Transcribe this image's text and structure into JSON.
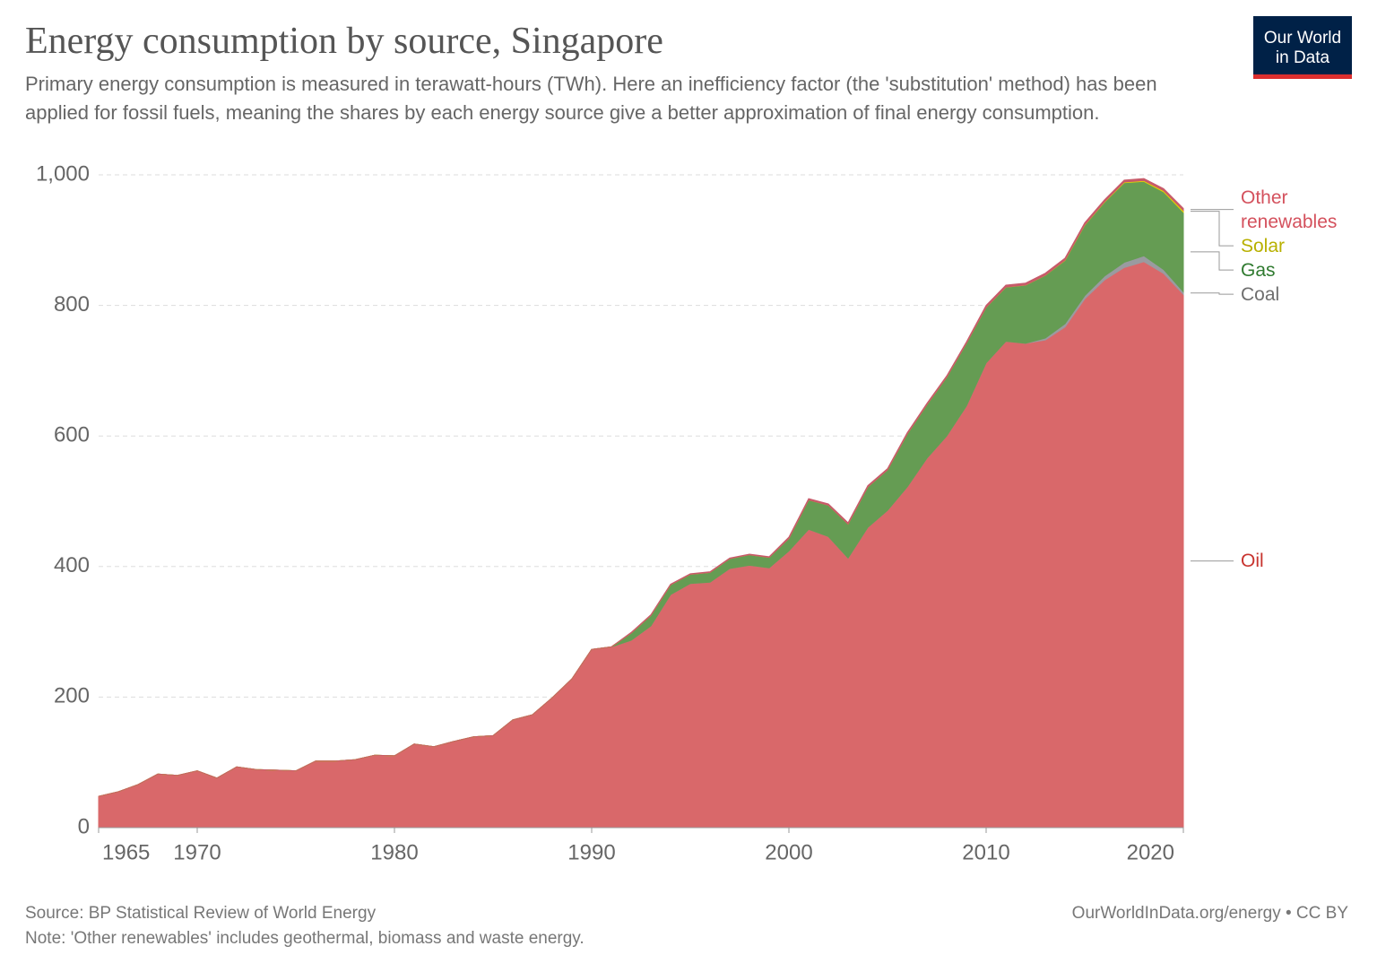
{
  "chart_data": {
    "type": "stacked_area",
    "title": "Energy consumption by source, Singapore",
    "subtitle": "Primary energy consumption is measured in terawatt-hours (TWh). Here an inefficiency factor (the 'substitution' method) has been applied for fossil fuels, meaning the shares by each energy source give a better approximation of final energy consumption.",
    "logo": "Our World in Data",
    "source": "Source: BP Statistical Review of World Energy",
    "note": "Note: 'Other renewables' includes geothermal, biomass and waste energy.",
    "url": "OurWorldInData.org/energy • CC BY",
    "x": [
      1965,
      1966,
      1967,
      1968,
      1969,
      1970,
      1971,
      1972,
      1973,
      1974,
      1975,
      1976,
      1977,
      1978,
      1979,
      1980,
      1981,
      1982,
      1983,
      1984,
      1985,
      1986,
      1987,
      1988,
      1989,
      1990,
      1991,
      1992,
      1993,
      1994,
      1995,
      1996,
      1997,
      1998,
      1999,
      2000,
      2001,
      2002,
      2003,
      2004,
      2005,
      2006,
      2007,
      2008,
      2009,
      2010,
      2011,
      2012,
      2013,
      2014,
      2015,
      2016,
      2017,
      2018,
      2019,
      2020
    ],
    "xlim": [
      1965,
      2020
    ],
    "xticks": [
      1965,
      1970,
      1980,
      1990,
      2000,
      2010,
      2020
    ],
    "ylim": [
      0,
      1000
    ],
    "yticks": [
      0,
      200,
      400,
      600,
      800,
      {
        "value": 1000,
        "label": "1,000"
      }
    ],
    "grid": true,
    "series": [
      {
        "name": "Oil",
        "color": "#d9686a",
        "label_color": "#c8342f",
        "values": [
          48,
          55,
          66,
          82,
          80,
          87,
          76,
          93,
          89,
          88,
          87,
          102,
          102,
          104,
          111,
          110,
          128,
          124,
          132,
          139,
          141,
          165,
          173,
          199,
          228,
          273,
          277,
          287,
          309,
          357,
          374,
          376,
          397,
          402,
          398,
          424,
          457,
          446,
          413,
          460,
          486,
          522,
          566,
          600,
          646,
          712,
          745,
          742,
          747,
          767,
          810,
          839,
          858,
          867,
          849,
          817
        ]
      },
      {
        "name": "Coal",
        "color": "#9a9ba0",
        "label_color": "#6e6e6e",
        "values": [
          0,
          0,
          0,
          0,
          0,
          0,
          0,
          0,
          0,
          0,
          0,
          0,
          0,
          0,
          0,
          0,
          0,
          0,
          0,
          0,
          0,
          0,
          0,
          0,
          0,
          0,
          0,
          0,
          0,
          0,
          0,
          0,
          0,
          0,
          0,
          0,
          0,
          0,
          0,
          0,
          0,
          0,
          0,
          0,
          0,
          0,
          0,
          0,
          3,
          5,
          5,
          6,
          8,
          9,
          6,
          4
        ]
      },
      {
        "name": "Gas",
        "color": "#659c53",
        "label_color": "#2f7a2f",
        "values": [
          0,
          0,
          0,
          0,
          0,
          0,
          0,
          0,
          0,
          0,
          0,
          0,
          0,
          0,
          0,
          0,
          0,
          0,
          0,
          0,
          0,
          0,
          0,
          0,
          0,
          0,
          0,
          11,
          16,
          15,
          14,
          15,
          15,
          16,
          16,
          19,
          45,
          48,
          52,
          62,
          62,
          81,
          82,
          90,
          96,
          85,
          83,
          89,
          96,
          97,
          108,
          113,
          122,
          114,
          119,
          122
        ]
      },
      {
        "name": "Solar",
        "color": "#e4d300",
        "label_color": "#b8b000",
        "values": [
          0,
          0,
          0,
          0,
          0,
          0,
          0,
          0,
          0,
          0,
          0,
          0,
          0,
          0,
          0,
          0,
          0,
          0,
          0,
          0,
          0,
          0,
          0,
          0,
          0,
          0,
          0,
          0,
          0,
          0,
          0,
          0,
          0,
          0,
          0,
          0,
          0,
          0,
          0,
          0,
          0,
          0,
          0,
          0,
          0,
          0.1,
          0.1,
          0.2,
          0.3,
          0.4,
          0.6,
          0.8,
          1,
          1.3,
          1.8,
          2.5
        ]
      },
      {
        "name": "Other renewables",
        "color": "#c75b6a",
        "label_color": "#d4515d",
        "values": [
          0,
          0,
          0,
          0,
          0,
          0,
          0,
          0,
          0,
          0,
          0,
          0,
          0,
          0,
          0,
          0,
          0,
          0,
          0,
          0,
          0,
          0,
          0,
          0,
          0,
          0,
          0,
          1,
          1,
          1,
          1,
          1,
          1,
          1,
          1,
          2,
          2,
          2,
          2,
          2,
          2,
          2,
          2,
          2,
          2,
          3,
          3,
          3,
          3,
          3,
          3,
          3,
          3,
          3,
          3,
          3
        ]
      }
    ]
  }
}
